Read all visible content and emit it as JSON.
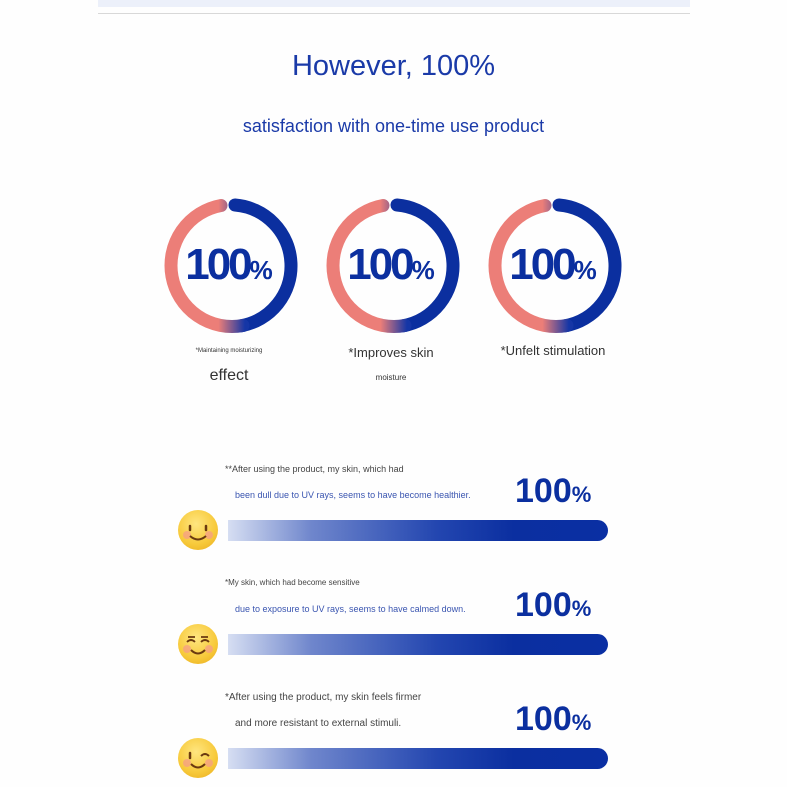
{
  "header": {
    "title": "However, 100%",
    "subtitle": "satisfaction with one-time use product"
  },
  "colors": {
    "accent": "#0b2f9f",
    "ring_left": "#ec7e78",
    "title": "#1a3aa8"
  },
  "rings": [
    {
      "value": "100",
      "unit": "%",
      "caption_small": "*Maintaining moisturizing",
      "caption_large": "effect"
    },
    {
      "value": "100",
      "unit": "%",
      "caption_large": "*Improves skin",
      "caption_small": "moisture"
    },
    {
      "value": "100",
      "unit": "%",
      "caption_large": "*Unfelt stimulation"
    }
  ],
  "statements": [
    {
      "line1": "**After using the product, my skin, which had",
      "line2": "been dull due to UV rays, seems to have become healthier.",
      "value": "100",
      "unit": "%",
      "progress_percent": 100,
      "emoji": "smiling-face-icon"
    },
    {
      "line1": "*My skin, which had become sensitive",
      "line2": "due to exposure to UV rays, seems to have calmed down.",
      "value": "100",
      "unit": "%",
      "progress_percent": 100,
      "emoji": "happy-closed-eyes-face-icon"
    },
    {
      "line1": "*After using the product, my skin feels firmer",
      "line2": "and more resistant to external stimuli.",
      "value": "100",
      "unit": "%",
      "progress_percent": 100,
      "emoji": "winking-face-icon"
    }
  ]
}
